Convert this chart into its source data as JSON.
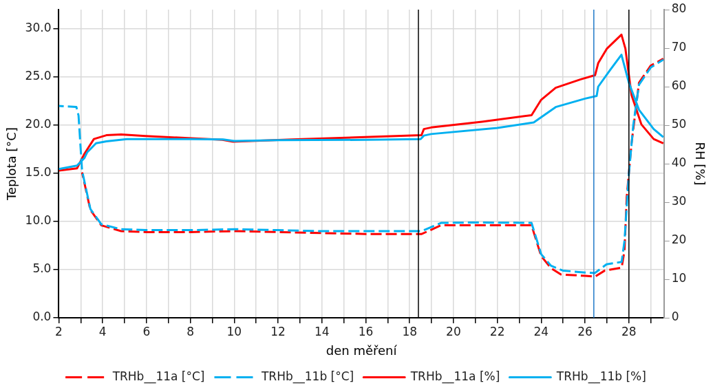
{
  "chart_data": {
    "type": "line",
    "xlabel": "den měření",
    "ylabel": "Teplota [°C]",
    "y2label": "RH [%]",
    "xlim": [
      2,
      29.6
    ],
    "xticks": [
      2,
      {
        "value": 3,
        "label": null
      },
      4,
      {
        "value": 5,
        "label": null
      },
      6,
      {
        "value": 7,
        "label": null
      },
      8,
      {
        "value": 9,
        "label": null
      },
      10,
      {
        "value": 11,
        "label": null
      },
      12,
      {
        "value": 13,
        "label": null
      },
      14,
      {
        "value": 15,
        "label": null
      },
      16,
      {
        "value": 17,
        "label": null
      },
      18,
      {
        "value": 19,
        "label": null
      },
      20,
      {
        "value": 21,
        "label": null
      },
      22,
      {
        "value": 23,
        "label": null
      },
      24,
      {
        "value": 25,
        "label": null
      },
      26,
      {
        "value": 27,
        "label": null
      },
      28,
      {
        "value": 29,
        "label": null
      }
    ],
    "ylim": [
      0,
      32
    ],
    "yticks": [
      {
        "value": 0,
        "label": "0.0"
      },
      {
        "value": 5,
        "label": "5.0"
      },
      {
        "value": 10,
        "label": "10.0"
      },
      {
        "value": 15,
        "label": "15.0"
      },
      {
        "value": 20,
        "label": "20.0"
      },
      {
        "value": 25,
        "label": "25.0"
      },
      {
        "value": 30,
        "label": "30.0"
      }
    ],
    "y2lim": [
      0,
      80
    ],
    "y2ticks": [
      0,
      10,
      20,
      30,
      40,
      50,
      60,
      70,
      80
    ],
    "grid": true,
    "legend": "bottom",
    "marker": "none",
    "ref_lines": [
      {
        "axis": "x",
        "value": 18.4,
        "color": "#000000"
      },
      {
        "axis": "x",
        "value": 26.4,
        "color": "#1f78c8"
      },
      {
        "axis": "x",
        "value": 28,
        "color": "#000000"
      }
    ],
    "series": [
      {
        "name": "TRHb__11a [°C]",
        "color": "#ff0000",
        "line_style": "dashed",
        "x": [
          3.06,
          3.44,
          3.94,
          4.84,
          6,
          8,
          10,
          12,
          14,
          16,
          18.4,
          18.55,
          19.43,
          21,
          23.56,
          24,
          24.45,
          24.9,
          26,
          26.45,
          26.9,
          27.67,
          27.8,
          27.9,
          28.12,
          28.46,
          29,
          29.57
        ],
        "values": [
          15.1,
          11.2,
          9.6,
          9,
          8.9,
          8.9,
          9,
          8.9,
          8.8,
          8.7,
          8.7,
          8.7,
          9.6,
          9.6,
          9.6,
          6.4,
          5.15,
          4.5,
          4.35,
          4.27,
          4.9,
          5.2,
          7,
          12.5,
          18.1,
          24.4,
          26.2,
          26.9
        ]
      },
      {
        "name": "TRHb__11b [°C]",
        "color": "#00b0f0",
        "line_style": "dashed",
        "x": [
          2,
          2.8,
          2.9,
          3.06,
          3.44,
          3.94,
          4.84,
          6,
          8,
          10,
          12,
          14,
          16,
          18.4,
          18.55,
          19.43,
          21,
          23.56,
          24,
          24.45,
          24.99,
          26,
          26.45,
          26.98,
          27.67,
          27.8,
          28,
          28.2,
          28.46,
          29,
          29.57
        ],
        "values": [
          22,
          21.9,
          21,
          15.3,
          11.3,
          9.7,
          9.2,
          9.1,
          9.1,
          9.2,
          9.1,
          9,
          9,
          9,
          9,
          9.85,
          9.9,
          9.85,
          6.6,
          5.4,
          4.9,
          4.7,
          4.65,
          5.55,
          5.8,
          8,
          15,
          20,
          24.2,
          26,
          26.8
        ]
      },
      {
        "name": "TRHb__11a [%]",
        "color": "#ff0000",
        "line_style": "solid",
        "axis": "y2",
        "x": [
          2,
          2.83,
          3.17,
          3.6,
          4.17,
          4.84,
          5.95,
          9.46,
          9.95,
          12.63,
          15.97,
          18.54,
          18.65,
          18.98,
          21.3,
          23.56,
          24,
          24.66,
          25.8,
          26.46,
          26.6,
          27,
          27.66,
          27.84,
          28.12,
          28.57,
          29.13,
          29.57
        ],
        "values": [
          38.2,
          38.8,
          42.6,
          46.4,
          47.4,
          47.6,
          47.2,
          46.2,
          45.7,
          46.3,
          46.9,
          47.4,
          49,
          49.4,
          50.9,
          52.6,
          56.6,
          59.7,
          61.9,
          63,
          66.1,
          69.9,
          73.5,
          69.9,
          57.8,
          50.2,
          46.4,
          45.3
        ]
      },
      {
        "name": "TRHb__11b [%]",
        "color": "#00b0f0",
        "line_style": "solid",
        "axis": "y2",
        "x": [
          2,
          2.83,
          3.17,
          3.3,
          3.7,
          4.17,
          5.1,
          8,
          9.5,
          10,
          12,
          16,
          18.5,
          18.65,
          18.98,
          22,
          23.66,
          24.66,
          26,
          26.53,
          26.6,
          27.13,
          27.66,
          28,
          28.46,
          29.13,
          29.57
        ],
        "values": [
          38.6,
          39.5,
          41.5,
          43,
          45.3,
          45.8,
          46.4,
          46.4,
          46.3,
          45.9,
          46.1,
          46.2,
          46.4,
          47.3,
          47.7,
          49.3,
          50.7,
          54.7,
          56.9,
          57.6,
          60,
          64.2,
          68.3,
          61,
          54,
          49,
          46.9
        ]
      }
    ]
  }
}
